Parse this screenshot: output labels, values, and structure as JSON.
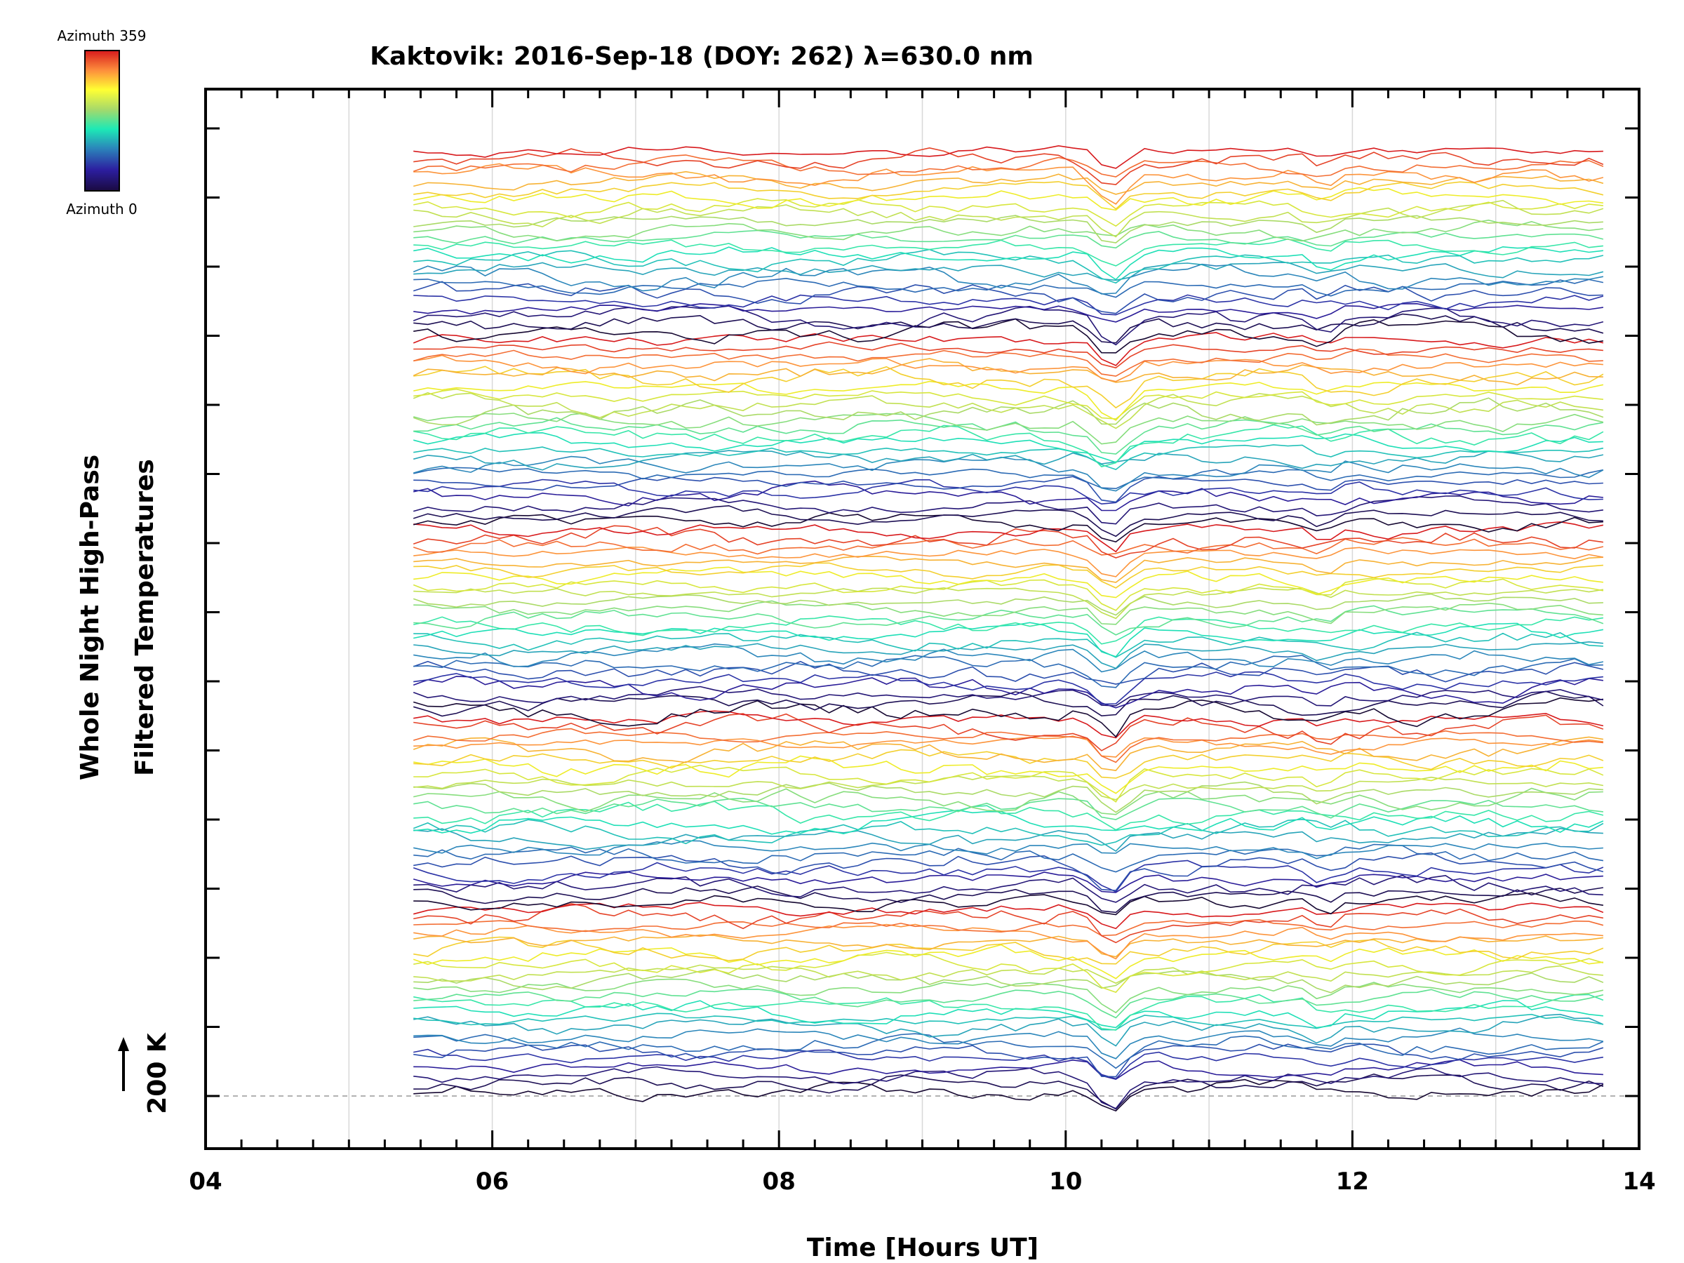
{
  "chart_data": {
    "type": "line",
    "title": "Kaktovik: 2016-Sep-18 (DOY: 262) λ=630.0 nm",
    "xlabel": "Time [Hours UT]",
    "ylabel_line1": "Whole Night High-Pass",
    "ylabel_line2": "Filtered Temperatures",
    "scale_label": "200 K",
    "xlim": [
      4,
      14
    ],
    "x_ticks": [
      4,
      6,
      8,
      10,
      12,
      14
    ],
    "x_tick_labels": [
      "04",
      "06",
      "08",
      "10",
      "12",
      "14"
    ],
    "gridlines_x": [
      5,
      6,
      7,
      8,
      9,
      10,
      11,
      12,
      13
    ],
    "grid": true,
    "time_range": [
      5.45,
      13.75
    ],
    "series_count": 120,
    "stacked_offset_description": "Each azimuth trace is offset vertically; arrow indicates 200 K scale",
    "common_features": [
      {
        "time": 10.3,
        "description": "sharp dip seen across most traces"
      },
      {
        "time": 11.8,
        "description": "secondary dip"
      }
    ],
    "colorbar": {
      "label_top": "Azimuth  359",
      "label_bottom": "Azimuth  0",
      "colors": [
        "#d7191c",
        "#fdae61",
        "#ffff33",
        "#a6d96a",
        "#1de9b6",
        "#2b83ba",
        "#2c1ea0",
        "#1a0a40"
      ]
    }
  }
}
